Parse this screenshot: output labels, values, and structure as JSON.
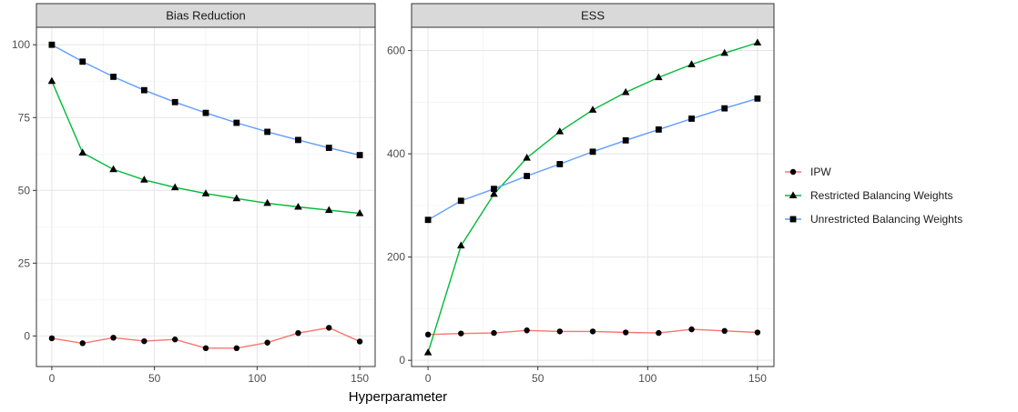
{
  "chart_data": {
    "type": "line",
    "xlabel": "Hyperparameter",
    "ylabel": "",
    "x": [
      0,
      15,
      30,
      45,
      60,
      75,
      90,
      105,
      120,
      135,
      150
    ],
    "legend": {
      "position": "right",
      "entries": [
        "IPW",
        "Restricted Balancing Weights",
        "Unrestricted Balancing Weights"
      ]
    },
    "colors": {
      "IPW": "#F8766D",
      "Restricted Balancing Weights": "#00BA38",
      "Unrestricted Balancing Weights": "#619CFF"
    },
    "markers": {
      "IPW": "circle",
      "Restricted Balancing Weights": "triangle",
      "Unrestricted Balancing Weights": "square"
    },
    "grid": true,
    "panels": [
      {
        "title": "Bias Reduction",
        "xlim": [
          -7.5,
          157.5
        ],
        "ylim": [
          -10.5,
          106
        ],
        "xticks": [
          "0",
          "50",
          "100",
          "150"
        ],
        "yticks": [
          "0",
          "25",
          "50",
          "75",
          "100"
        ],
        "series": [
          {
            "name": "IPW",
            "values": [
              -0.8,
              -2.5,
              -0.6,
              -1.8,
              -1.2,
              -4.2,
              -4.2,
              -2.3,
              1,
              2.8,
              -1.9
            ]
          },
          {
            "name": "Restricted Balancing Weights",
            "values": [
              87.5,
              62.9,
              57.2,
              53.6,
              51,
              48.9,
              47.2,
              45.6,
              44.3,
              43.2,
              42.1
            ]
          },
          {
            "name": "Unrestricted Balancing Weights",
            "values": [
              100,
              94.2,
              89,
              84.4,
              80.3,
              76.6,
              73.2,
              70.1,
              67.3,
              64.6,
              62.1
            ]
          }
        ]
      },
      {
        "title": "ESS",
        "xlim": [
          -7.5,
          157.5
        ],
        "ylim": [
          -12,
          645
        ],
        "xticks": [
          "0",
          "50",
          "100",
          "150"
        ],
        "yticks": [
          "0",
          "200",
          "400",
          "600"
        ],
        "series": [
          {
            "name": "IPW",
            "values": [
              50,
              52,
              53,
              58,
              56,
              56,
              54,
              53,
              60,
              57,
              54
            ]
          },
          {
            "name": "Restricted Balancing Weights",
            "values": [
              15,
              222,
              322,
              392,
              443,
              485,
              519,
              548,
              573,
              595,
              615
            ]
          },
          {
            "name": "Unrestricted Balancing Weights",
            "values": [
              272,
              309,
              332,
              357,
              380,
              404,
              426,
              447,
              468,
              488,
              507
            ]
          }
        ]
      }
    ]
  }
}
